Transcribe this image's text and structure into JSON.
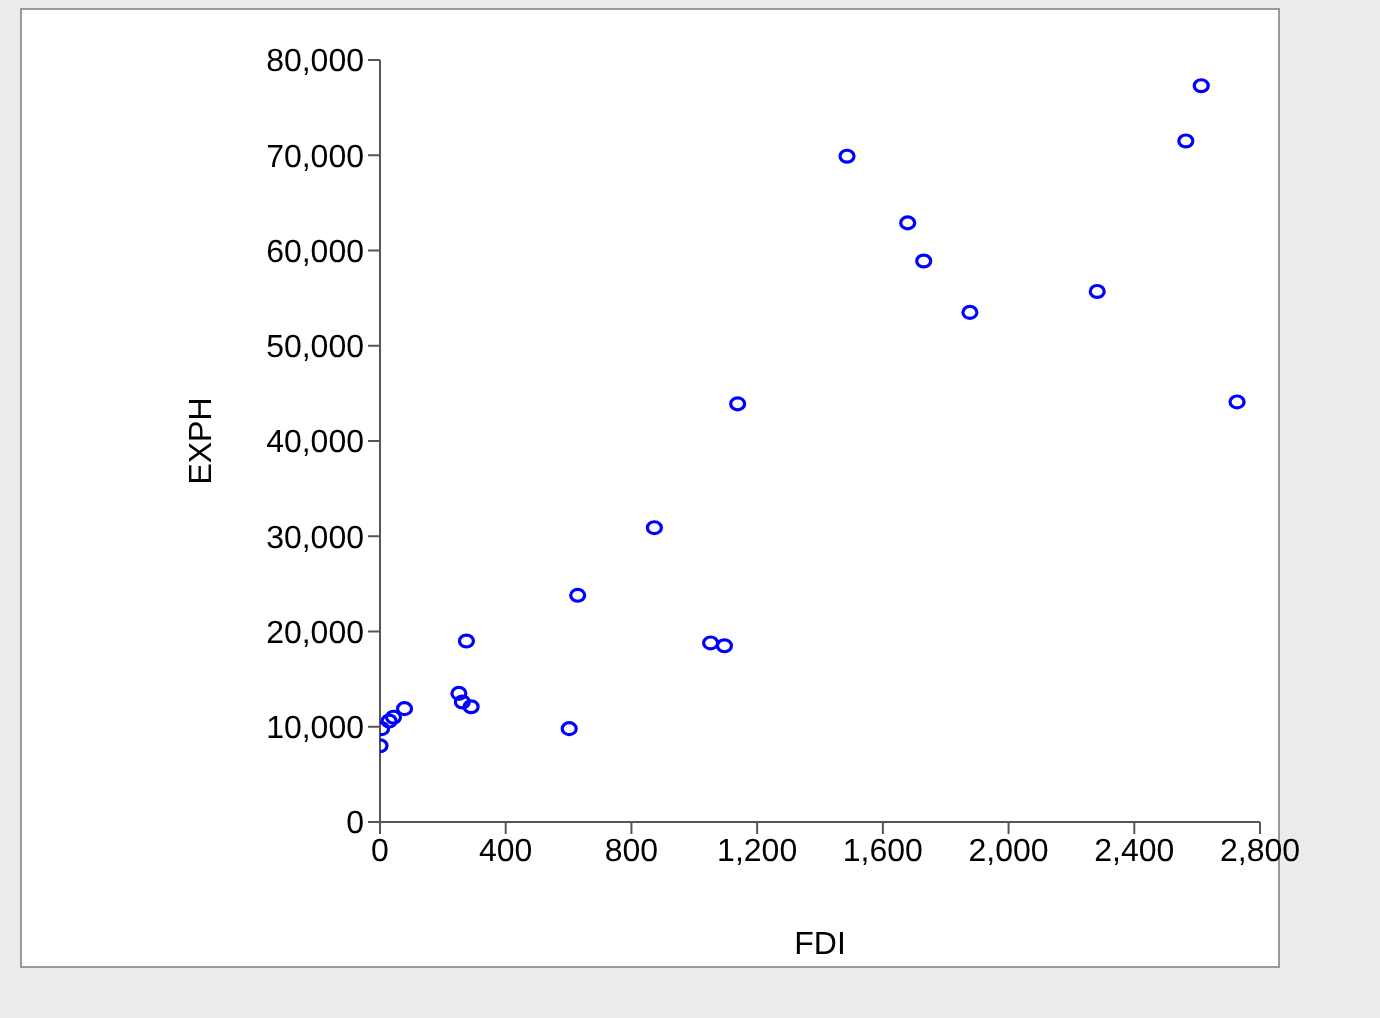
{
  "chart_data": {
    "type": "scatter",
    "xlabel": "FDI",
    "ylabel": "EXPH",
    "marker": "circle",
    "xlim": [
      0,
      2800
    ],
    "xticks": [
      {
        "value": 0,
        "label": "0"
      },
      {
        "value": 400,
        "label": "400"
      },
      {
        "value": 800,
        "label": "800"
      },
      {
        "value": 1200,
        "label": "1,200"
      },
      {
        "value": 1600,
        "label": "1,600"
      },
      {
        "value": 2000,
        "label": "2,000"
      },
      {
        "value": 2400,
        "label": "2,400"
      },
      {
        "value": 2800,
        "label": "2,800"
      }
    ],
    "ylim": [
      0,
      80000
    ],
    "yticks": [
      {
        "value": 0,
        "label": "0"
      },
      {
        "value": 10000,
        "label": "10,000"
      },
      {
        "value": 20000,
        "label": "20,000"
      },
      {
        "value": 30000,
        "label": "30,000"
      },
      {
        "value": 40000,
        "label": "40,000"
      },
      {
        "value": 50000,
        "label": "50,000"
      },
      {
        "value": 60000,
        "label": "60,000"
      },
      {
        "value": 70000,
        "label": "70,000"
      },
      {
        "value": 80000,
        "label": "80,000"
      }
    ],
    "series": [
      {
        "color": "#0000ff",
        "x": [
          0,
          5,
          29,
          43,
          78,
          251,
          262,
          290,
          275,
          602,
          629,
          1052,
          1096,
          1138,
          873,
          1486,
          1679,
          1730,
          1877,
          2282,
          2564,
          2613,
          2727
        ],
        "values": [
          8000,
          9800,
          10600,
          11000,
          11900,
          13500,
          12600,
          12100,
          19000,
          9800,
          23800,
          18800,
          18500,
          43900,
          30900,
          69900,
          62900,
          58900,
          53500,
          55700,
          71500,
          77300,
          44100
        ]
      }
    ]
  }
}
